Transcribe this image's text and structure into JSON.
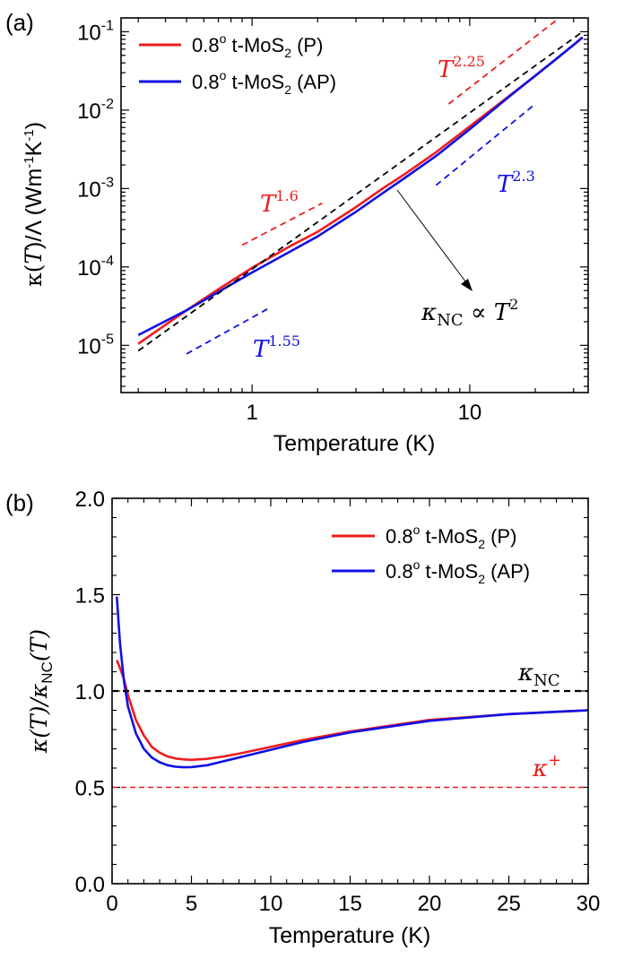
{
  "panel_a": {
    "label": "(a)",
    "xlabel": "Temperature (K)",
    "ylabel_parts": [
      "κ(",
      "T",
      ")/Λ  (Wm",
      "-1",
      "K",
      "-1",
      ")"
    ],
    "legend": [
      {
        "base": "0.8",
        "sup": "o",
        "mid": " t-MoS",
        "sub": "2",
        "tail": " (P)"
      },
      {
        "base": "0.8",
        "sup": "o",
        "mid": " t-MoS",
        "sub": "2",
        "tail": " (AP)"
      }
    ],
    "annotations": {
      "t225": {
        "base": "T",
        "exp": "2.25"
      },
      "t23": {
        "base": "T",
        "exp": "2.3"
      },
      "t16": {
        "base": "T",
        "exp": "1.6"
      },
      "t155": {
        "base": "T",
        "exp": "1.55"
      },
      "knc": {
        "k": "κ",
        "sub": "NC",
        "prop": " ∝ ",
        "T": "T",
        "exp": "2"
      }
    }
  },
  "panel_b": {
    "label": "(b)",
    "xlabel": "Temperature (K)",
    "ylabel_parts": [
      "κ(",
      "T",
      ")/κ",
      "NC",
      "(",
      "T",
      ")"
    ],
    "legend": [
      {
        "base": "0.8",
        "sup": "o",
        "mid": " t-MoS",
        "sub": "2",
        "tail": " (P)"
      },
      {
        "base": "0.8",
        "sup": "o",
        "mid": " t-MoS",
        "sub": "2",
        "tail": " (AP)"
      }
    ],
    "annotations": {
      "knc": {
        "k": "κ",
        "sub": "NC"
      },
      "kplus": {
        "k": "κ",
        "sup": "+"
      }
    }
  },
  "colors": {
    "P": "#ee1c1c",
    "AP": "#1010e6",
    "ref": "#000000"
  },
  "chart_data": [
    {
      "type": "line",
      "title": "",
      "xlabel": "Temperature (K)",
      "ylabel": "κ(T)/Λ (Wm-1K-1)",
      "xscale": "log",
      "yscale": "log",
      "xlim": [
        0.25,
        35
      ],
      "ylim": [
        2.5e-06,
        0.15
      ],
      "xticks": [
        1,
        10
      ],
      "xtick_labels": [
        "1",
        "10"
      ],
      "yticks": [
        1e-05,
        0.0001,
        0.001,
        0.01,
        0.1
      ],
      "ytick_labels": [
        "10",
        "10",
        "10",
        "10",
        "10"
      ],
      "ytick_exps": [
        "-5",
        "-4",
        "-3",
        "-2",
        "-1"
      ],
      "legend_position": "top-left",
      "series": [
        {
          "name": "0.8o t-MoS2 (P)",
          "color_key": "P",
          "style": "solid",
          "x": [
            0.3,
            0.5,
            0.7,
            1.0,
            1.5,
            2.0,
            3.0,
            4.0,
            5.0,
            7.0,
            10.0,
            15.0,
            20.0,
            25.0,
            30.0,
            33.0
          ],
          "y": [
            1.05e-05,
            2.8e-05,
            5.2e-05,
            9.75e-05,
            0.000185,
            0.00028,
            0.00058,
            0.00101,
            0.00151,
            0.0029,
            0.0062,
            0.0148,
            0.0275,
            0.045,
            0.068,
            0.085
          ]
        },
        {
          "name": "0.8o t-MoS2 (AP)",
          "color_key": "AP",
          "style": "solid",
          "x": [
            0.3,
            0.5,
            0.7,
            1.0,
            1.5,
            2.0,
            3.0,
            4.0,
            5.0,
            7.0,
            10.0,
            15.0,
            20.0,
            25.0,
            30.0,
            33.0
          ],
          "y": [
            1.35e-05,
            2.8e-05,
            4.8e-05,
            8.5e-05,
            0.000158,
            0.000245,
            0.000505,
            0.00088,
            0.00135,
            0.0026,
            0.0057,
            0.0145,
            0.0275,
            0.045,
            0.068,
            0.085
          ]
        },
        {
          "name": "κNC ∝ T^2",
          "color_key": "ref",
          "style": "dashed",
          "x": [
            0.3,
            33.0
          ],
          "y": [
            8.5e-06,
            0.1
          ]
        },
        {
          "name": "T^2.25",
          "color_key": "P",
          "style": "dashed",
          "x": [
            8.0,
            25.0
          ],
          "y": [
            0.012,
            0.14
          ]
        },
        {
          "name": "T^2.3",
          "color_key": "AP",
          "style": "dashed",
          "x": [
            7.0,
            20.0
          ],
          "y": [
            0.0011,
            0.012
          ]
        },
        {
          "name": "T^1.6",
          "color_key": "P",
          "style": "dashed",
          "x": [
            0.9,
            2.1
          ],
          "y": [
            0.00019,
            0.00065
          ]
        },
        {
          "name": "T^1.55",
          "color_key": "AP",
          "style": "dashed",
          "x": [
            0.5,
            1.2
          ],
          "y": [
            7.8e-06,
            3e-05
          ]
        }
      ]
    },
    {
      "type": "line",
      "title": "",
      "xlabel": "Temperature (K)",
      "ylabel": "κ(T)/κNC(T)",
      "xscale": "linear",
      "yscale": "linear",
      "xlim": [
        0,
        30
      ],
      "ylim": [
        0,
        2
      ],
      "xticks": [
        0,
        5,
        10,
        15,
        20,
        25,
        30
      ],
      "xtick_labels": [
        "0",
        "5",
        "10",
        "15",
        "20",
        "25",
        "30"
      ],
      "yticks": [
        0,
        0.5,
        1.0,
        1.5,
        2.0
      ],
      "ytick_labels": [
        "0.0",
        "0.5",
        "1.0",
        "1.5",
        "2.0"
      ],
      "legend_position": "top-right",
      "series": [
        {
          "name": "0.8o t-MoS2 (P)",
          "color_key": "P",
          "style": "solid",
          "x": [
            0.3,
            0.5,
            0.75,
            1.0,
            1.5,
            2.0,
            2.5,
            3.0,
            3.5,
            4.0,
            4.5,
            5.0,
            6.0,
            7.0,
            8.0,
            10.0,
            12.0,
            15.0,
            20.0,
            25.0,
            30.0
          ],
          "y": [
            1.16,
            1.12,
            1.06,
            0.98,
            0.85,
            0.77,
            0.71,
            0.68,
            0.66,
            0.65,
            0.645,
            0.643,
            0.648,
            0.66,
            0.675,
            0.71,
            0.745,
            0.79,
            0.85,
            0.88,
            0.9
          ]
        },
        {
          "name": "0.8o t-MoS2 (AP)",
          "color_key": "AP",
          "style": "solid",
          "x": [
            0.3,
            0.5,
            0.75,
            1.0,
            1.5,
            2.0,
            2.5,
            3.0,
            3.5,
            4.0,
            4.5,
            5.0,
            6.0,
            7.0,
            8.0,
            10.0,
            12.0,
            15.0,
            20.0,
            25.0,
            30.0
          ],
          "y": [
            1.49,
            1.25,
            1.05,
            0.92,
            0.78,
            0.7,
            0.655,
            0.63,
            0.615,
            0.607,
            0.604,
            0.605,
            0.615,
            0.635,
            0.655,
            0.695,
            0.735,
            0.785,
            0.845,
            0.88,
            0.9
          ]
        },
        {
          "name": "κNC",
          "color_key": "ref",
          "style": "dashed",
          "x": [
            0.0,
            30.0
          ],
          "y": [
            1.0,
            1.0
          ]
        },
        {
          "name": "κ+",
          "color_key": "P",
          "style": "dashed-thin",
          "x": [
            0.0,
            30.0
          ],
          "y": [
            0.5,
            0.5
          ]
        }
      ]
    }
  ]
}
